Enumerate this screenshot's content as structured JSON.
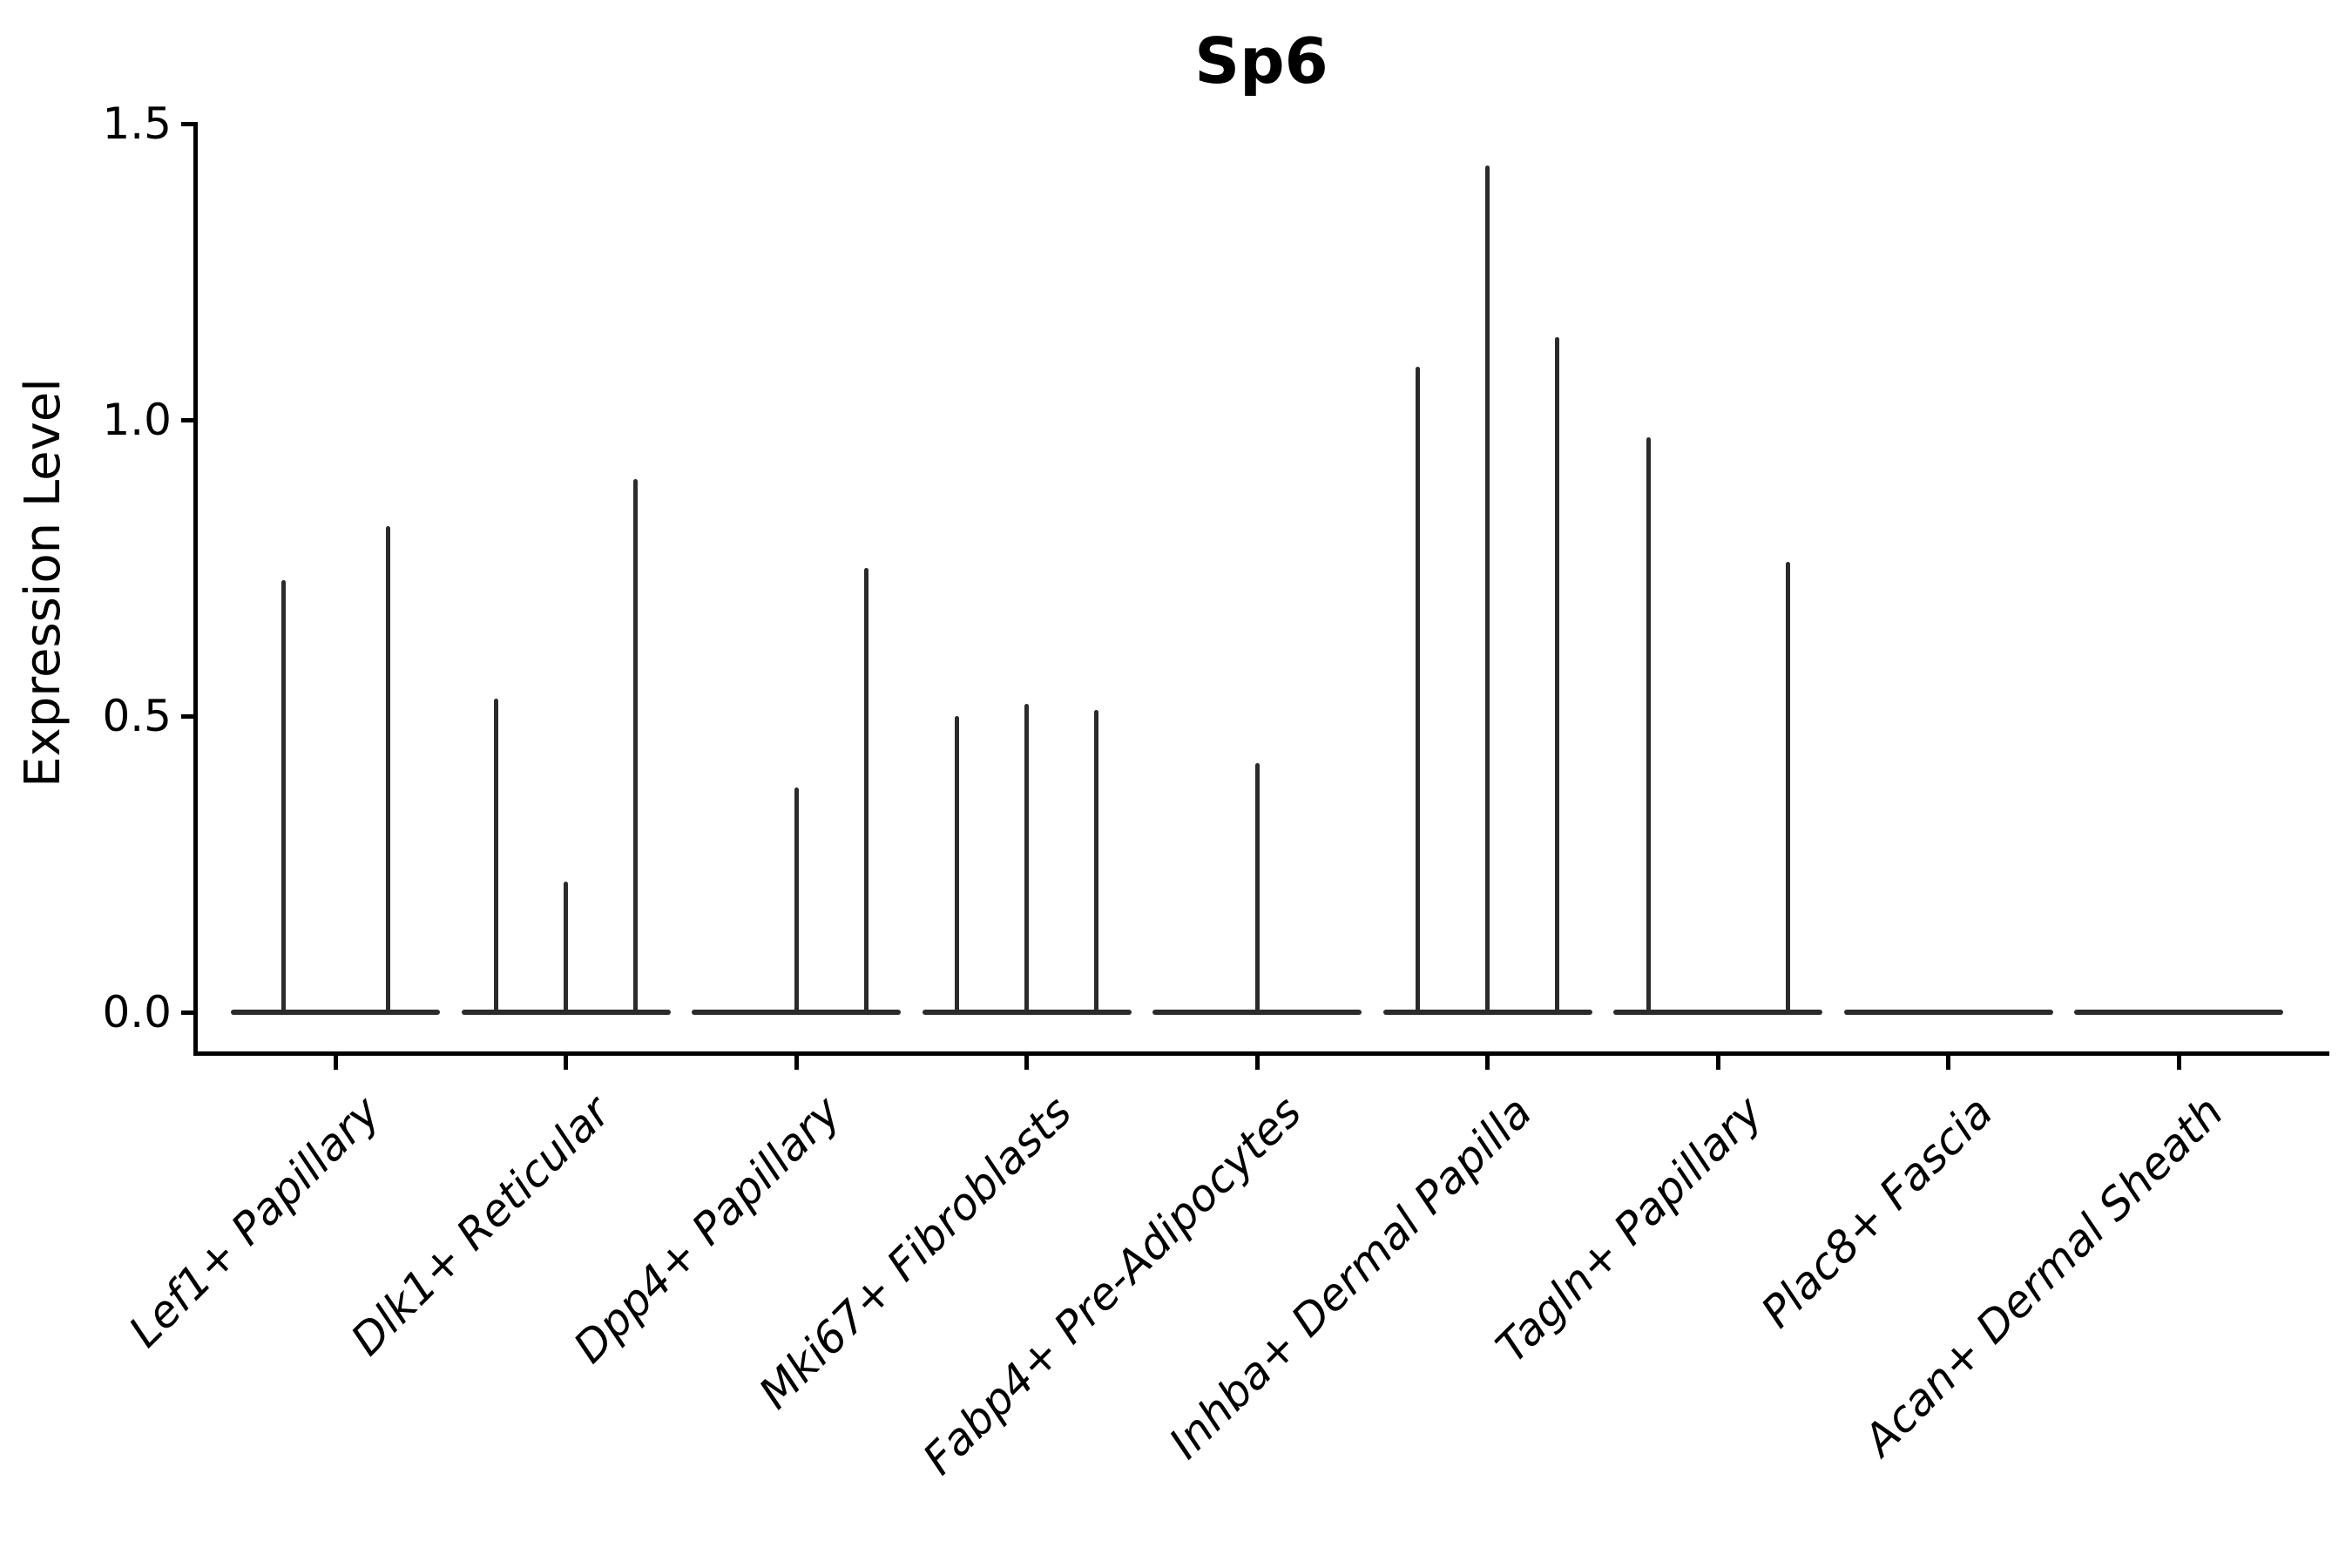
{
  "title": "Sp6",
  "ylabel": "Expression Level",
  "chart_data": {
    "type": "violin",
    "title": "Sp6",
    "xlabel": "",
    "ylabel": "Expression Level",
    "ylim": [
      0,
      1.5
    ],
    "yticks": [
      0.0,
      0.5,
      1.0,
      1.5
    ],
    "ytick_labels": [
      "0.0",
      "0.5",
      "1.0",
      "1.5"
    ],
    "grid": false,
    "legend": "none",
    "style_note": "violins collapse to flat baselines at 0 with thin vertical spikes reaching each group's maximum expression; x labels rotated 45deg italic",
    "categories": [
      "Lef1+ Papillary",
      "Dlk1+ Reticular",
      "Dpp4+ Papillary",
      "Mki67+ Fibroblasts",
      "Fabp4+ Pre-Adipocytes",
      "Inhba+ Dermal Papilla",
      "Tagln+ Papillary",
      "Plac8+ Fascia",
      "Acan+ Dermal Sheath"
    ],
    "series": [
      {
        "category": "Lef1+ Papillary",
        "spikes": [
          {
            "dx": -60,
            "max": 0.73
          },
          {
            "dx": 60,
            "max": 0.82
          }
        ]
      },
      {
        "category": "Dlk1+ Reticular",
        "spikes": [
          {
            "dx": -80,
            "max": 0.53
          },
          {
            "dx": 0,
            "max": 0.22
          },
          {
            "dx": 80,
            "max": 0.9
          }
        ]
      },
      {
        "category": "Dpp4+ Papillary",
        "spikes": [
          {
            "dx": 0,
            "max": 0.38
          },
          {
            "dx": 80,
            "max": 0.75
          }
        ]
      },
      {
        "category": "Mki67+ Fibroblasts",
        "spikes": [
          {
            "dx": -80,
            "max": 0.5
          },
          {
            "dx": 0,
            "max": 0.52
          },
          {
            "dx": 80,
            "max": 0.51
          }
        ]
      },
      {
        "category": "Fabp4+ Pre-Adipocytes",
        "spikes": [
          {
            "dx": 0,
            "max": 0.42
          }
        ]
      },
      {
        "category": "Inhba+ Dermal Papilla",
        "spikes": [
          {
            "dx": -80,
            "max": 1.09
          },
          {
            "dx": 0,
            "max": 1.43
          },
          {
            "dx": 80,
            "max": 1.14
          }
        ]
      },
      {
        "category": "Tagln+ Papillary",
        "spikes": [
          {
            "dx": -80,
            "max": 0.97
          },
          {
            "dx": 80,
            "max": 0.76
          }
        ]
      },
      {
        "category": "Plac8+ Fascia",
        "spikes": []
      },
      {
        "category": "Acan+ Dermal Sheath",
        "spikes": []
      }
    ],
    "colors": {
      "violin": "#2b2b2b",
      "axis": "#000000",
      "text": "#000000",
      "background": "#ffffff"
    }
  }
}
